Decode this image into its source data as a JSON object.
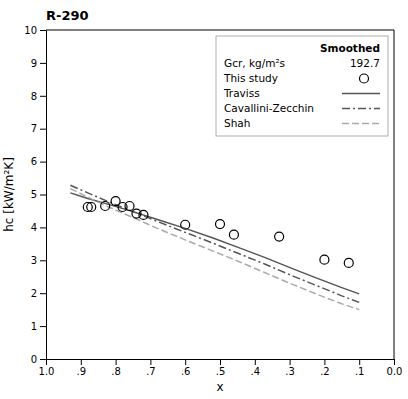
{
  "chart_data": {
    "type": "scatter",
    "title": "R-290",
    "x_label": "x",
    "y_label": "hc [kW/m²K]",
    "xlim": [
      1.0,
      0.0
    ],
    "ylim": [
      0,
      10
    ],
    "xticks": [
      {
        "value": 1.0,
        "label": "1.0"
      },
      {
        "value": 0.9,
        "label": ".9"
      },
      {
        "value": 0.8,
        "label": ".8"
      },
      {
        "value": 0.7,
        "label": ".7"
      },
      {
        "value": 0.6,
        "label": ".6"
      },
      {
        "value": 0.5,
        "label": ".5"
      },
      {
        "value": 0.4,
        "label": ".4"
      },
      {
        "value": 0.3,
        "label": ".3"
      },
      {
        "value": 0.2,
        "label": ".2"
      },
      {
        "value": 0.1,
        "label": ".1"
      },
      {
        "value": 0.0,
        "label": "0.0"
      }
    ],
    "yticks": [
      0,
      1,
      2,
      3,
      4,
      5,
      6,
      7,
      8,
      9,
      10
    ],
    "grid": false,
    "legend": "upper right",
    "annotations": [
      "Smoothed",
      "Gcr, kg/m²s",
      "192.7"
    ],
    "series": [
      {
        "name": "This study",
        "type": "scatter",
        "marker": "circle",
        "color": "black",
        "x": [
          0.88,
          0.87,
          0.83,
          0.8,
          0.78,
          0.76,
          0.74,
          0.72,
          0.6,
          0.5,
          0.46,
          0.33,
          0.2,
          0.13
        ],
        "values": [
          4.62,
          4.62,
          4.65,
          4.8,
          4.62,
          4.65,
          4.42,
          4.38,
          4.08,
          4.1,
          3.78,
          3.72,
          3.02,
          2.92
        ]
      },
      {
        "name": "Traviss",
        "type": "line",
        "line_style": "solid",
        "color": "#555555",
        "x": [
          0.93,
          0.88,
          0.82,
          0.75,
          0.68,
          0.6,
          0.52,
          0.45,
          0.37,
          0.29,
          0.22,
          0.15,
          0.1
        ],
        "values": [
          5.05,
          4.88,
          4.7,
          4.48,
          4.24,
          3.97,
          3.68,
          3.4,
          3.08,
          2.74,
          2.45,
          2.17,
          1.98
        ]
      },
      {
        "name": "Cavallini-Zecchin",
        "type": "line",
        "line_style": "dashdot",
        "color": "#555555",
        "x": [
          0.93,
          0.88,
          0.82,
          0.75,
          0.68,
          0.6,
          0.52,
          0.45,
          0.37,
          0.29,
          0.22,
          0.15,
          0.1
        ],
        "values": [
          5.28,
          5.05,
          4.78,
          4.48,
          4.18,
          3.85,
          3.52,
          3.22,
          2.88,
          2.52,
          2.22,
          1.92,
          1.72
        ]
      },
      {
        "name": "Shah",
        "type": "line",
        "line_style": "dashed",
        "color": "#aaaaaa",
        "x": [
          0.93,
          0.88,
          0.82,
          0.75,
          0.68,
          0.6,
          0.52,
          0.45,
          0.37,
          0.29,
          0.22,
          0.15,
          0.1
        ],
        "values": [
          5.18,
          4.92,
          4.62,
          4.3,
          3.97,
          3.62,
          3.28,
          2.98,
          2.62,
          2.26,
          1.96,
          1.68,
          1.5
        ]
      }
    ]
  }
}
